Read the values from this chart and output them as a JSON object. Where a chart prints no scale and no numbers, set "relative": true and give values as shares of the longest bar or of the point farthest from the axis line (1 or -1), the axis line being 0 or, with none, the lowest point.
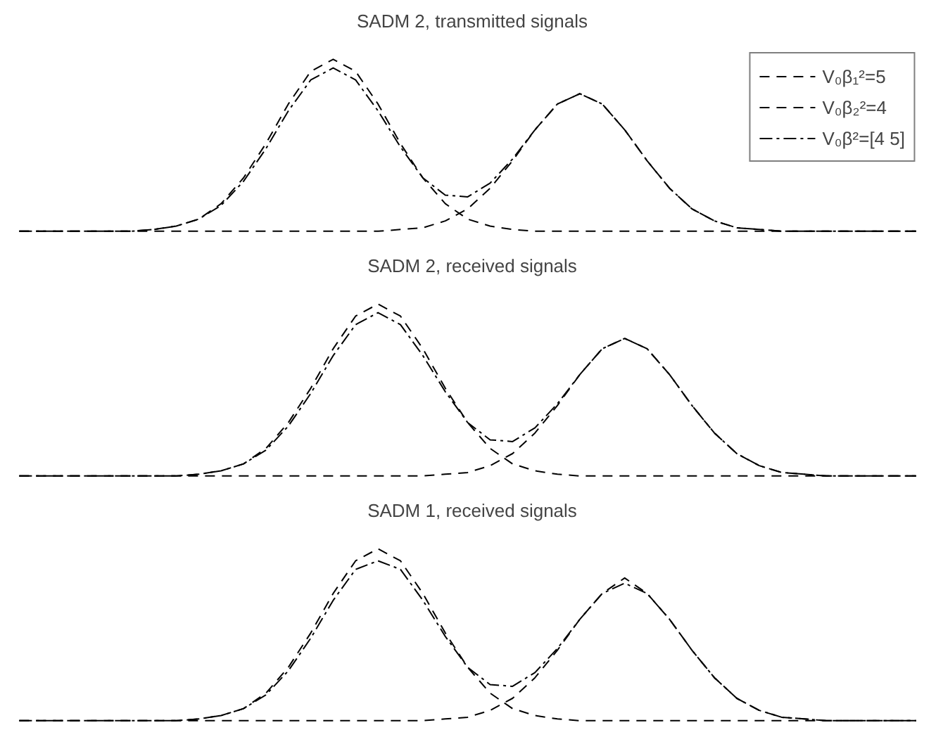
{
  "chart_data": [
    {
      "type": "line",
      "title": "SADM 2, transmitted signals",
      "relative": true,
      "legend": "top right",
      "categories": [
        null,
        null,
        null,
        null,
        null,
        null,
        null,
        null,
        null,
        null,
        null,
        null,
        null,
        null,
        null,
        null,
        null,
        null,
        null,
        null,
        null,
        null,
        null,
        null,
        null,
        null,
        null,
        null,
        null,
        null,
        null,
        null,
        null,
        null,
        null,
        null,
        null,
        null,
        null,
        null,
        null
      ],
      "series": [
        {
          "name": "V₀β₁²=5",
          "color": "#000000",
          "line_style": "dashed",
          "values": [
            0,
            0,
            0,
            0,
            0,
            0,
            0.01,
            0.03,
            0.07,
            0.16,
            0.31,
            0.51,
            0.74,
            0.93,
            1,
            0.93,
            0.74,
            0.51,
            0.31,
            0.16,
            0.07,
            0.03,
            0.01,
            0,
            0,
            0,
            0,
            0,
            0,
            0,
            0,
            0,
            0,
            0,
            0,
            0,
            0,
            0,
            0,
            0,
            0
          ]
        },
        {
          "name": "V₀β₂²=4",
          "color": "#000000",
          "line_style": "dashed",
          "values": [
            0,
            0,
            0,
            0,
            0,
            0,
            0,
            0,
            0,
            0,
            0,
            0,
            0,
            0,
            0,
            0,
            0,
            0.01,
            0.02,
            0.06,
            0.13,
            0.25,
            0.41,
            0.59,
            0.74,
            0.8,
            0.74,
            0.59,
            0.41,
            0.25,
            0.13,
            0.06,
            0.02,
            0.01,
            0,
            0,
            0,
            0,
            0,
            0,
            0
          ]
        },
        {
          "name": "V₀β²=[4 5]",
          "color": "#000000",
          "line_style": "dotted",
          "values": [
            0,
            0,
            0,
            0,
            0,
            0,
            0.01,
            0.03,
            0.07,
            0.15,
            0.29,
            0.48,
            0.7,
            0.88,
            0.95,
            0.88,
            0.7,
            0.49,
            0.31,
            0.21,
            0.2,
            0.28,
            0.42,
            0.59,
            0.74,
            0.8,
            0.74,
            0.59,
            0.41,
            0.25,
            0.13,
            0.06,
            0.02,
            0.01,
            0,
            0,
            0,
            0,
            0,
            0,
            0
          ]
        }
      ]
    },
    {
      "type": "line",
      "title": "SADM 2, received signals",
      "relative": true,
      "categories": [
        null,
        null,
        null,
        null,
        null,
        null,
        null,
        null,
        null,
        null,
        null,
        null,
        null,
        null,
        null,
        null,
        null,
        null,
        null,
        null,
        null,
        null,
        null,
        null,
        null,
        null,
        null,
        null,
        null,
        null,
        null,
        null,
        null,
        null,
        null,
        null,
        null,
        null,
        null,
        null,
        null
      ],
      "series": [
        {
          "color": "#000000",
          "line_style": "dashed",
          "values": [
            0,
            0,
            0,
            0,
            0,
            0,
            0,
            0,
            0.01,
            0.03,
            0.07,
            0.16,
            0.31,
            0.51,
            0.74,
            0.93,
            1,
            0.93,
            0.74,
            0.51,
            0.31,
            0.16,
            0.07,
            0.03,
            0.01,
            0,
            0,
            0,
            0,
            0,
            0,
            0,
            0,
            0,
            0,
            0,
            0,
            0,
            0,
            0,
            0
          ]
        },
        {
          "color": "#000000",
          "line_style": "dashed",
          "values": [
            0,
            0,
            0,
            0,
            0,
            0,
            0,
            0,
            0,
            0,
            0,
            0,
            0,
            0,
            0,
            0,
            0,
            0,
            0,
            0.01,
            0.02,
            0.06,
            0.13,
            0.25,
            0.41,
            0.59,
            0.74,
            0.8,
            0.74,
            0.59,
            0.41,
            0.25,
            0.13,
            0.06,
            0.02,
            0.01,
            0,
            0,
            0,
            0,
            0
          ]
        },
        {
          "color": "#000000",
          "line_style": "dotted",
          "values": [
            0,
            0,
            0,
            0,
            0,
            0,
            0,
            0,
            0.01,
            0.03,
            0.07,
            0.15,
            0.29,
            0.48,
            0.7,
            0.88,
            0.95,
            0.88,
            0.7,
            0.49,
            0.31,
            0.21,
            0.2,
            0.28,
            0.42,
            0.59,
            0.74,
            0.8,
            0.74,
            0.59,
            0.41,
            0.25,
            0.13,
            0.06,
            0.02,
            0.01,
            0,
            0,
            0,
            0,
            0
          ]
        }
      ]
    },
    {
      "type": "line",
      "title": "SADM 1, received signals",
      "relative": true,
      "categories": [
        null,
        null,
        null,
        null,
        null,
        null,
        null,
        null,
        null,
        null,
        null,
        null,
        null,
        null,
        null,
        null,
        null,
        null,
        null,
        null,
        null,
        null,
        null,
        null,
        null,
        null,
        null,
        null,
        null,
        null,
        null,
        null,
        null,
        null,
        null,
        null,
        null,
        null,
        null,
        null,
        null
      ],
      "series": [
        {
          "color": "#000000",
          "line_style": "dashed",
          "values": [
            0,
            0,
            0,
            0,
            0,
            0,
            0,
            0,
            0.01,
            0.03,
            0.07,
            0.16,
            0.31,
            0.51,
            0.74,
            0.93,
            1,
            0.93,
            0.74,
            0.51,
            0.31,
            0.16,
            0.07,
            0.03,
            0.01,
            0,
            0,
            0,
            0,
            0,
            0,
            0,
            0,
            0,
            0,
            0,
            0,
            0,
            0,
            0,
            0
          ]
        },
        {
          "color": "#000000",
          "line_style": "dashed",
          "values": [
            0,
            0,
            0,
            0,
            0,
            0,
            0,
            0,
            0,
            0,
            0,
            0,
            0,
            0,
            0,
            0,
            0,
            0,
            0,
            0.01,
            0.02,
            0.06,
            0.13,
            0.25,
            0.41,
            0.59,
            0.74,
            0.83,
            0.74,
            0.59,
            0.41,
            0.25,
            0.13,
            0.06,
            0.02,
            0.01,
            0,
            0,
            0,
            0,
            0
          ]
        },
        {
          "color": "#000000",
          "line_style": "dotted",
          "values": [
            0,
            0,
            0,
            0,
            0,
            0,
            0,
            0,
            0.01,
            0.03,
            0.07,
            0.15,
            0.29,
            0.48,
            0.7,
            0.88,
            0.93,
            0.88,
            0.7,
            0.49,
            0.31,
            0.21,
            0.2,
            0.28,
            0.42,
            0.59,
            0.74,
            0.8,
            0.74,
            0.59,
            0.41,
            0.25,
            0.13,
            0.06,
            0.02,
            0.01,
            0,
            0,
            0,
            0,
            0
          ]
        }
      ]
    }
  ]
}
